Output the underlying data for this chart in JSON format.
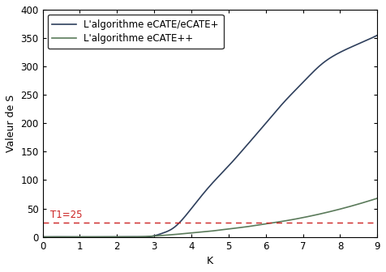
{
  "title": "",
  "xlabel": "K",
  "ylabel": "Valeur de S",
  "xlim": [
    0,
    9
  ],
  "ylim": [
    0,
    400
  ],
  "xticks": [
    0,
    1,
    2,
    3,
    4,
    5,
    6,
    7,
    8,
    9
  ],
  "yticks": [
    0,
    50,
    100,
    150,
    200,
    250,
    300,
    350,
    400
  ],
  "k_values": [
    0,
    1,
    2,
    2.5,
    3,
    3.2,
    3.5,
    4,
    4.5,
    5,
    5.5,
    6,
    6.5,
    7,
    7.5,
    8,
    8.5,
    9
  ],
  "s1_values": [
    0,
    0,
    0,
    0.2,
    2,
    6,
    15,
    50,
    90,
    125,
    162,
    200,
    238,
    272,
    304,
    325,
    340,
    355
  ],
  "s2_values": [
    0,
    0,
    0,
    0.1,
    1.5,
    2.5,
    4,
    7,
    10,
    14,
    18,
    23,
    28,
    34,
    41,
    49,
    58,
    68
  ],
  "line1_color": "#2e3f5c",
  "line2_color": "#5a7a5a",
  "line1_label": "L'algorithme eCATE/eCATE+",
  "line2_label": "L'algorithme eCATE++",
  "threshold": 25,
  "threshold_label": "T1=25",
  "threshold_color": "#cc2222",
  "threshold_linestyle": "--",
  "background_color": "#ffffff",
  "legend_fontsize": 8.5,
  "axis_fontsize": 9,
  "tick_fontsize": 8.5,
  "linewidth": 1.2
}
